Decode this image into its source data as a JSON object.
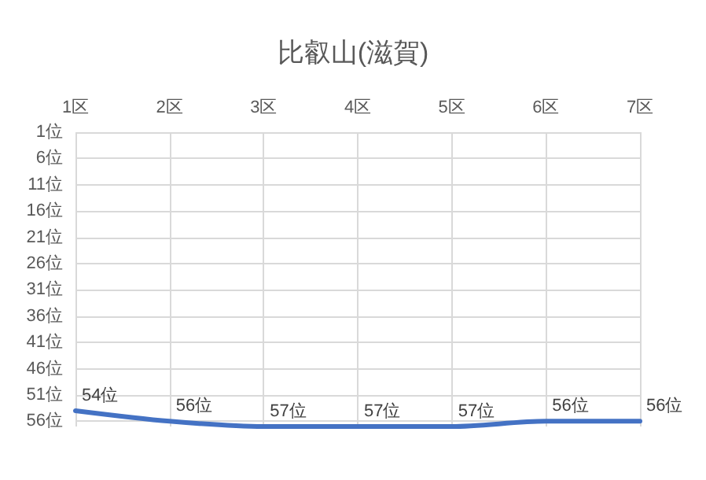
{
  "chart_data": {
    "type": "line",
    "title": "比叡山(滋賀)",
    "categories": [
      "1区",
      "2区",
      "3区",
      "4区",
      "5区",
      "6区",
      "7区"
    ],
    "series": [
      {
        "color": "#4472c4",
        "values": [
          54,
          56,
          57,
          57,
          57,
          56,
          56
        ],
        "value_labels": [
          "54位",
          "56位",
          "57位",
          "57位",
          "57位",
          "56位",
          "56位"
        ]
      }
    ],
    "ylim": [
      57,
      1
    ],
    "yticks": [
      {
        "value": 1,
        "label": "1位"
      },
      {
        "value": 6,
        "label": "6位"
      },
      {
        "value": 11,
        "label": "11位"
      },
      {
        "value": 16,
        "label": "16位"
      },
      {
        "value": 21,
        "label": "21位"
      },
      {
        "value": 26,
        "label": "26位"
      },
      {
        "value": 31,
        "label": "31位"
      },
      {
        "value": 36,
        "label": "36位"
      },
      {
        "value": 41,
        "label": "41位"
      },
      {
        "value": 46,
        "label": "46位"
      },
      {
        "value": 51,
        "label": "51位"
      },
      {
        "value": 56,
        "label": "56位"
      }
    ],
    "grid": true,
    "marker": "none",
    "line_style": "solid"
  }
}
